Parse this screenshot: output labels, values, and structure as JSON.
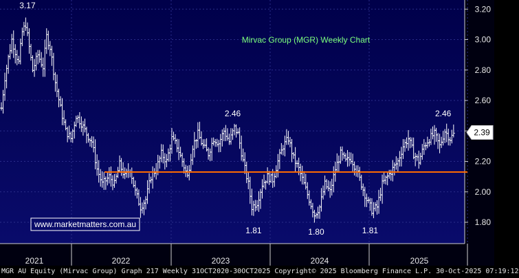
{
  "chart_data": {
    "type": "ohlc",
    "title": "Mirvac Group (MGR) Weekly Chart",
    "watermark": "www.marketmatters.com.au",
    "ylim": [
      1.66,
      3.26
    ],
    "y_ticks": [
      "3.20",
      "3.00",
      "2.80",
      "2.60",
      "2.40",
      "2.20",
      "2.00",
      "1.80"
    ],
    "x_labels": [
      "2021",
      "2022",
      "2023",
      "2024",
      "2025"
    ],
    "last_price_label": "2.39",
    "support_level": 2.13,
    "annotations": [
      {
        "text": "3.17",
        "value": 3.17
      },
      {
        "text": "2.46",
        "value": 2.46
      },
      {
        "text": "1.81",
        "value": 1.81
      },
      {
        "text": "1.80",
        "value": 1.8
      },
      {
        "text": "1.81",
        "value": 1.81
      },
      {
        "text": "2.46",
        "value": 2.46
      }
    ],
    "series": {
      "close_path": [
        [
          "2020-10-30",
          2.55
        ],
        [
          "2020-11-13",
          2.75
        ],
        [
          "2020-11-27",
          2.88
        ],
        [
          "2020-12-11",
          3.0
        ],
        [
          "2020-12-25",
          2.92
        ],
        [
          "2021-01-08",
          2.85
        ],
        [
          "2021-01-22",
          3.05
        ],
        [
          "2021-02-05",
          3.1
        ],
        [
          "2021-02-19",
          2.95
        ],
        [
          "2021-03-05",
          2.8
        ],
        [
          "2021-03-26",
          2.9
        ],
        [
          "2021-04-16",
          2.82
        ],
        [
          "2021-04-30",
          3.02
        ],
        [
          "2021-05-14",
          2.95
        ],
        [
          "2021-06-04",
          2.72
        ],
        [
          "2021-06-25",
          2.55
        ],
        [
          "2021-07-16",
          2.4
        ],
        [
          "2021-08-06",
          2.35
        ],
        [
          "2021-08-27",
          2.5
        ],
        [
          "2021-09-17",
          2.45
        ],
        [
          "2021-10-08",
          2.38
        ],
        [
          "2021-10-29",
          2.33
        ],
        [
          "2021-11-19",
          2.15
        ],
        [
          "2021-12-10",
          2.05
        ],
        [
          "2022-01-07",
          2.1
        ],
        [
          "2022-01-28",
          2.05
        ],
        [
          "2022-02-18",
          2.18
        ],
        [
          "2022-03-11",
          2.1
        ],
        [
          "2022-04-01",
          2.15
        ],
        [
          "2022-04-22",
          2.0
        ],
        [
          "2022-05-13",
          1.9
        ],
        [
          "2022-06-03",
          1.95
        ],
        [
          "2022-06-24",
          2.1
        ],
        [
          "2022-07-15",
          2.15
        ],
        [
          "2022-08-05",
          2.25
        ],
        [
          "2022-08-26",
          2.2
        ],
        [
          "2022-09-16",
          2.35
        ],
        [
          "2022-10-07",
          2.3
        ],
        [
          "2022-10-28",
          2.2
        ],
        [
          "2022-11-18",
          2.1
        ],
        [
          "2022-12-09",
          2.3
        ],
        [
          "2022-12-30",
          2.38
        ],
        [
          "2023-01-20",
          2.3
        ],
        [
          "2023-02-10",
          2.25
        ],
        [
          "2023-03-03",
          2.35
        ],
        [
          "2023-03-24",
          2.32
        ],
        [
          "2023-04-14",
          2.4
        ],
        [
          "2023-05-05",
          2.33
        ],
        [
          "2023-05-26",
          2.42
        ],
        [
          "2023-06-09",
          2.38
        ],
        [
          "2023-06-30",
          2.2
        ],
        [
          "2023-07-21",
          2.05
        ],
        [
          "2023-08-04",
          1.9
        ],
        [
          "2023-08-25",
          1.93
        ],
        [
          "2023-09-15",
          2.05
        ],
        [
          "2023-10-06",
          2.1
        ],
        [
          "2023-10-27",
          2.08
        ],
        [
          "2023-11-17",
          2.2
        ],
        [
          "2023-12-08",
          2.3
        ],
        [
          "2023-12-29",
          2.35
        ],
        [
          "2024-01-19",
          2.22
        ],
        [
          "2024-02-09",
          2.15
        ],
        [
          "2024-03-01",
          2.05
        ],
        [
          "2024-03-22",
          1.95
        ],
        [
          "2024-04-12",
          1.85
        ],
        [
          "2024-05-03",
          1.9
        ],
        [
          "2024-05-24",
          2.05
        ],
        [
          "2024-06-14",
          2.0
        ],
        [
          "2024-07-05",
          2.15
        ],
        [
          "2024-07-26",
          2.25
        ],
        [
          "2024-08-16",
          2.2
        ],
        [
          "2024-09-06",
          2.22
        ],
        [
          "2024-09-27",
          2.15
        ],
        [
          "2024-10-18",
          2.05
        ],
        [
          "2024-11-08",
          1.95
        ],
        [
          "2024-11-29",
          1.88
        ],
        [
          "2024-12-20",
          1.9
        ],
        [
          "2025-01-10",
          2.05
        ],
        [
          "2025-01-31",
          2.1
        ],
        [
          "2025-02-21",
          2.15
        ],
        [
          "2025-03-14",
          2.2
        ],
        [
          "2025-04-04",
          2.3
        ],
        [
          "2025-04-25",
          2.35
        ],
        [
          "2025-05-16",
          2.25
        ],
        [
          "2025-06-06",
          2.2
        ],
        [
          "2025-06-27",
          2.3
        ],
        [
          "2025-07-18",
          2.35
        ],
        [
          "2025-08-08",
          2.38
        ],
        [
          "2025-08-29",
          2.3
        ],
        [
          "2025-09-19",
          2.4
        ],
        [
          "2025-10-10",
          2.35
        ],
        [
          "2025-10-30",
          2.39
        ]
      ]
    },
    "colors": {
      "background_top": "#00004a",
      "background_bottom": "#0a0c6e",
      "bars": "#ffffff",
      "support_line": "#ff6a00",
      "title_text": "#7cff7c",
      "watermark_text": "#ffffff",
      "watermark_border": "#ffffff",
      "grid": "#2a2d8a"
    }
  },
  "footer": {
    "text": "MGR AU Equity (Mirvac Group) Graph 217 Weekly 31OCT2020-30OCT2025  Copyright© 2025 Bloomberg Finance L.P.  30-Oct-2025 07:19:12"
  }
}
